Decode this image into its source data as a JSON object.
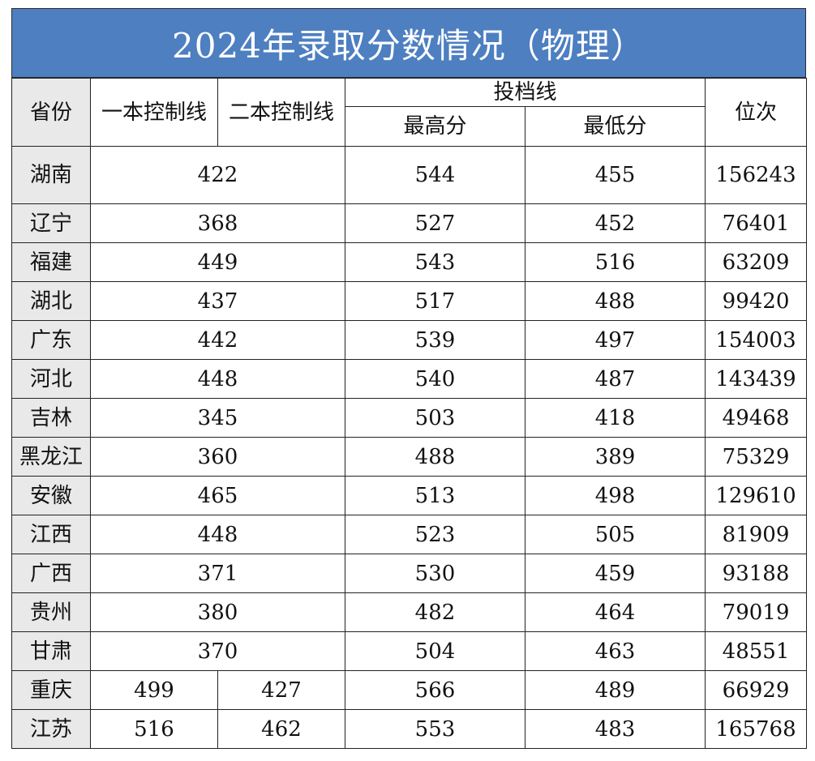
{
  "title": "2024年录取分数情况（物理）",
  "headers": {
    "province": "省份",
    "first_tier_line": "一本控制线",
    "second_tier_line": "二本控制线",
    "admission_line": "投档线",
    "highest": "最高分",
    "lowest": "最低分",
    "rank": "位次"
  },
  "rows": [
    {
      "province": "湖南",
      "control": "422",
      "highest": "544",
      "lowest": "455",
      "rank": "156243"
    },
    {
      "province": "辽宁",
      "control": "368",
      "highest": "527",
      "lowest": "452",
      "rank": "76401"
    },
    {
      "province": "福建",
      "control": "449",
      "highest": "543",
      "lowest": "516",
      "rank": "63209"
    },
    {
      "province": "湖北",
      "control": "437",
      "highest": "517",
      "lowest": "488",
      "rank": "99420"
    },
    {
      "province": "广东",
      "control": "442",
      "highest": "539",
      "lowest": "497",
      "rank": "154003"
    },
    {
      "province": "河北",
      "control": "448",
      "highest": "540",
      "lowest": "487",
      "rank": "143439"
    },
    {
      "province": "吉林",
      "control": "345",
      "highest": "503",
      "lowest": "418",
      "rank": "49468"
    },
    {
      "province": "黑龙江",
      "control": "360",
      "highest": "488",
      "lowest": "389",
      "rank": "75329"
    },
    {
      "province": "安徽",
      "control": "465",
      "highest": "513",
      "lowest": "498",
      "rank": "129610"
    },
    {
      "province": "江西",
      "control": "448",
      "highest": "523",
      "lowest": "505",
      "rank": "81909"
    },
    {
      "province": "广西",
      "control": "371",
      "highest": "530",
      "lowest": "459",
      "rank": "93188"
    },
    {
      "province": "贵州",
      "control": "380",
      "highest": "482",
      "lowest": "464",
      "rank": "79019"
    },
    {
      "province": "甘肃",
      "control": "370",
      "highest": "504",
      "lowest": "463",
      "rank": "48551"
    },
    {
      "province": "重庆",
      "first_tier": "499",
      "second_tier": "427",
      "highest": "566",
      "lowest": "489",
      "rank": "66929"
    },
    {
      "province": "江苏",
      "first_tier": "516",
      "second_tier": "462",
      "highest": "553",
      "lowest": "483",
      "rank": "165768"
    }
  ]
}
